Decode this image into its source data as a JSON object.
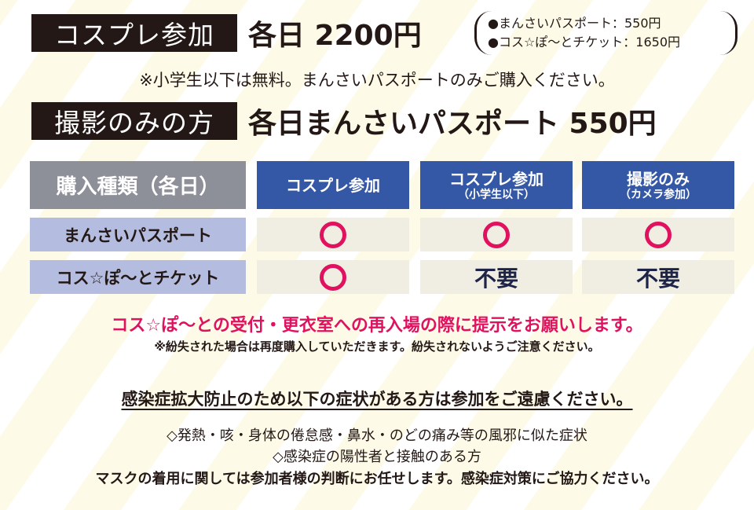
{
  "cosplay": {
    "label": "コスプレ参加",
    "price": "各日 2200円",
    "breakdown": [
      "●まんさいパスポート：550円",
      "●コス☆ぽ〜とチケット：1650円"
    ]
  },
  "note_children": "※小学生以下は無料。まんさいパスポートのみご購入ください。",
  "photo": {
    "label": "撮影のみの方",
    "price": "各日まんさいパスポート 550円"
  },
  "table": {
    "header": [
      "購入種類（各日）",
      "コスプレ参加",
      "コスプレ参加",
      "撮影のみ"
    ],
    "header_sub": [
      "",
      "",
      "（小学生以下）",
      "（カメラ参加）"
    ],
    "rows": [
      {
        "label": "まんさいパスポート",
        "cells": [
          "○",
          "○",
          "○"
        ]
      },
      {
        "label": "コス☆ぽ〜とチケット",
        "cells": [
          "○",
          "不要",
          "不要"
        ]
      }
    ]
  },
  "notice_red": "コス☆ぽ〜との受付・更衣室への再入場の際に提示をお願いします。",
  "notice_lost": "※紛失された場合は再度購入していただきます。紛失されないようご注意ください。",
  "colors": {
    "accent_red": "#e0115f",
    "header_blue": "#3558a6",
    "row_label": "#b4bddf"
  },
  "infection": {
    "heading": "感染症拡大防止のため以下の症状がある方は参加をご遠慮ください。",
    "lines": [
      "◇発熱・咳・身体の倦怠感・鼻水・のどの痛み等の風邪に似た症状",
      "◇感染症の陽性者と接触のある方",
      "マスクの着用に関しては参加者様の判断にお任せします。感染症対策にご協力ください。"
    ]
  }
}
